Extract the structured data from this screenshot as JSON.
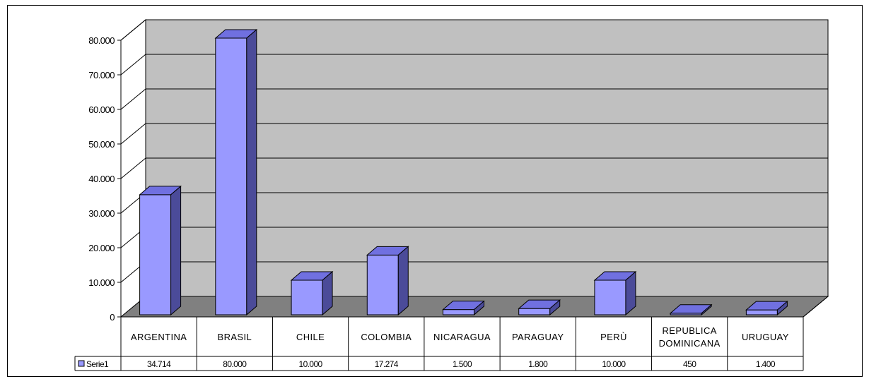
{
  "chart_data": {
    "type": "bar",
    "categories": [
      "ARGENTINA",
      "BRASIL",
      "CHILE",
      "COLOMBIA",
      "NICARAGUA",
      "PARAGUAY",
      "PERÙ",
      "REPUBLICA DOMINICANA",
      "URUGUAY"
    ],
    "category_labels": [
      [
        "ARGENTINA"
      ],
      [
        "BRASIL"
      ],
      [
        "CHILE"
      ],
      [
        "COLOMBIA"
      ],
      [
        "NICARAGUA"
      ],
      [
        "PARAGUAY"
      ],
      [
        "PERÙ"
      ],
      [
        "REPUBLICA",
        "DOMINICANA"
      ],
      [
        "URUGUAY"
      ]
    ],
    "series": [
      {
        "name": "Serie1",
        "values": [
          34714,
          80000,
          10000,
          17274,
          1500,
          1800,
          10000,
          450,
          1400
        ],
        "value_labels": [
          "34.714",
          "80.000",
          "10.000",
          "17.274",
          "1.500",
          "1.800",
          "10.000",
          "450",
          "1.400"
        ],
        "color": "#9999FF"
      }
    ],
    "y_ticks": [
      0,
      10000,
      20000,
      30000,
      40000,
      50000,
      60000,
      70000,
      80000
    ],
    "y_tick_labels": [
      "0",
      "10.000",
      "20.000",
      "30.000",
      "40.000",
      "50.000",
      "60.000",
      "70.000",
      "80.000"
    ],
    "ylim": [
      0,
      80000
    ],
    "grid": true,
    "legend": "data-table",
    "wall_color": "#C0C0C0",
    "floor_color": "#808080"
  }
}
